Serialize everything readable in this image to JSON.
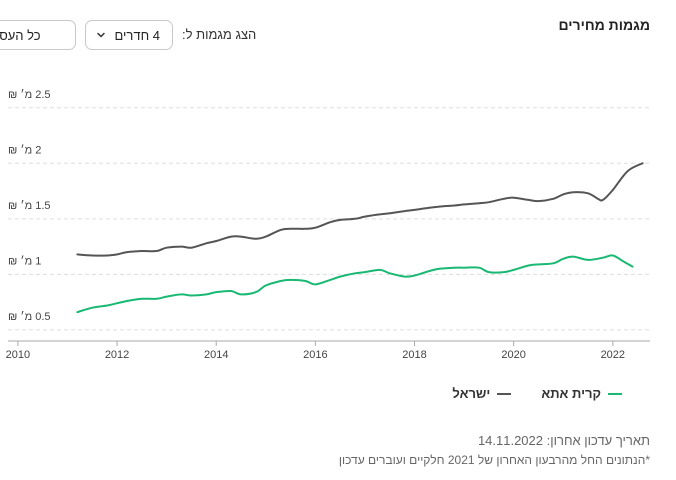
{
  "header": {
    "title": "מגמות מחירים",
    "filter_label": "הצג מגמות ל:",
    "rooms_select": {
      "value": "4 חדרים"
    },
    "deals_select": {
      "value": "כל העסקאות"
    }
  },
  "chart_data": {
    "type": "line",
    "title": "מגמות מחירים",
    "xlabel": "",
    "ylabel": "",
    "xlim": [
      2009.8,
      2022.75
    ],
    "ylim": [
      0.4,
      2.75
    ],
    "x_ticks": [
      2010,
      2012,
      2014,
      2016,
      2018,
      2020,
      2022
    ],
    "y_ticks": [
      {
        "value": 0.5,
        "label": "0.5 מ׳ ₪"
      },
      {
        "value": 1,
        "label": "1 מ׳ ₪"
      },
      {
        "value": 1.5,
        "label": "1.5 מ׳ ₪"
      },
      {
        "value": 2,
        "label": "2 מ׳ ₪"
      },
      {
        "value": 2.5,
        "label": "2.5 מ׳ ₪"
      }
    ],
    "grid": true,
    "legend_position": "bottom",
    "series": [
      {
        "name": "ישראל",
        "color": "#555555",
        "x": [
          2011.2,
          2011.5,
          2011.8,
          2012.0,
          2012.2,
          2012.5,
          2012.8,
          2013.0,
          2013.3,
          2013.5,
          2013.8,
          2014.0,
          2014.3,
          2014.5,
          2014.8,
          2015.0,
          2015.3,
          2015.5,
          2015.8,
          2016.0,
          2016.3,
          2016.5,
          2016.8,
          2017.0,
          2017.3,
          2017.5,
          2017.8,
          2018.0,
          2018.3,
          2018.5,
          2018.8,
          2019.0,
          2019.3,
          2019.5,
          2019.8,
          2020.0,
          2020.3,
          2020.5,
          2020.8,
          2021.0,
          2021.2,
          2021.5,
          2021.7,
          2021.8,
          2022.0,
          2022.3,
          2022.6
        ],
        "y": [
          1.18,
          1.17,
          1.17,
          1.18,
          1.2,
          1.21,
          1.21,
          1.24,
          1.25,
          1.24,
          1.28,
          1.3,
          1.34,
          1.34,
          1.32,
          1.34,
          1.4,
          1.41,
          1.41,
          1.42,
          1.47,
          1.49,
          1.5,
          1.52,
          1.54,
          1.55,
          1.57,
          1.58,
          1.6,
          1.61,
          1.62,
          1.63,
          1.64,
          1.65,
          1.68,
          1.69,
          1.67,
          1.66,
          1.68,
          1.72,
          1.74,
          1.73,
          1.68,
          1.67,
          1.76,
          1.93,
          2.0
        ]
      },
      {
        "name": "קרית אתא",
        "color": "#19b873",
        "x": [
          2011.2,
          2011.5,
          2011.8,
          2012.0,
          2012.2,
          2012.5,
          2012.8,
          2013.0,
          2013.3,
          2013.5,
          2013.8,
          2014.0,
          2014.3,
          2014.5,
          2014.8,
          2015.0,
          2015.3,
          2015.5,
          2015.8,
          2016.0,
          2016.3,
          2016.5,
          2016.8,
          2017.0,
          2017.3,
          2017.5,
          2017.8,
          2018.0,
          2018.3,
          2018.5,
          2018.8,
          2019.0,
          2019.3,
          2019.5,
          2019.8,
          2020.0,
          2020.3,
          2020.5,
          2020.8,
          2021.0,
          2021.2,
          2021.5,
          2021.8,
          2022.0,
          2022.2,
          2022.4
        ],
        "y": [
          0.66,
          0.7,
          0.72,
          0.74,
          0.76,
          0.78,
          0.78,
          0.8,
          0.82,
          0.81,
          0.82,
          0.84,
          0.85,
          0.82,
          0.84,
          0.9,
          0.94,
          0.95,
          0.94,
          0.91,
          0.95,
          0.98,
          1.01,
          1.02,
          1.04,
          1.01,
          0.98,
          0.99,
          1.03,
          1.05,
          1.06,
          1.06,
          1.06,
          1.02,
          1.02,
          1.04,
          1.08,
          1.09,
          1.1,
          1.14,
          1.16,
          1.13,
          1.15,
          1.17,
          1.12,
          1.07
        ]
      }
    ]
  },
  "legend": {
    "items": [
      {
        "label": "קרית אתא",
        "color": "#19b873"
      },
      {
        "label": "ישראל",
        "color": "#555555"
      }
    ]
  },
  "footer": {
    "updated": "תאריך עדכון אחרון: 14.11.2022",
    "note": "*הנתונים החל מהרבעון האחרון של 2021 חלקיים ועוברים עדכון"
  }
}
